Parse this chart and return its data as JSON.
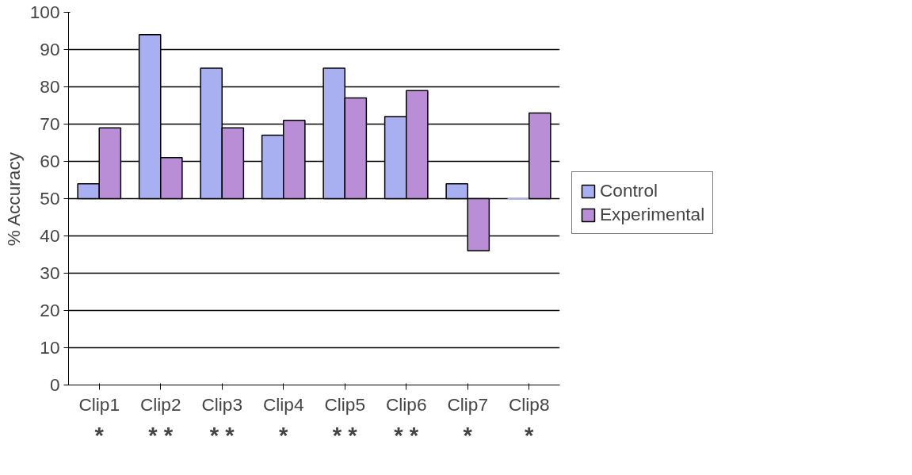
{
  "chart_data": {
    "type": "bar",
    "ylabel": "% Accuracy",
    "categories": [
      "Clip1",
      "Clip2",
      "Clip3",
      "Clip4",
      "Clip5",
      "Clip6",
      "Clip7",
      "Clip8"
    ],
    "series": [
      {
        "name": "Control",
        "color": "#a9b0f2",
        "base": [
          50,
          50,
          50,
          50,
          50,
          50,
          50,
          50
        ],
        "values": [
          4,
          44,
          35,
          17,
          35,
          22,
          4,
          0
        ]
      },
      {
        "name": "Experimental",
        "color": "#b98ed6",
        "base": [
          50,
          50,
          50,
          50,
          50,
          50,
          50,
          50
        ],
        "values": [
          19,
          11,
          19,
          21,
          27,
          29,
          -14,
          23
        ]
      }
    ],
    "ylim": [
      0,
      100
    ],
    "yticks": [
      0,
      10,
      20,
      30,
      40,
      50,
      60,
      70,
      80,
      90,
      100
    ],
    "grid": "y",
    "legend": "right",
    "annotations": [
      "*",
      "* *",
      "* *",
      "*",
      "* *",
      "* *",
      "*",
      "*"
    ]
  }
}
